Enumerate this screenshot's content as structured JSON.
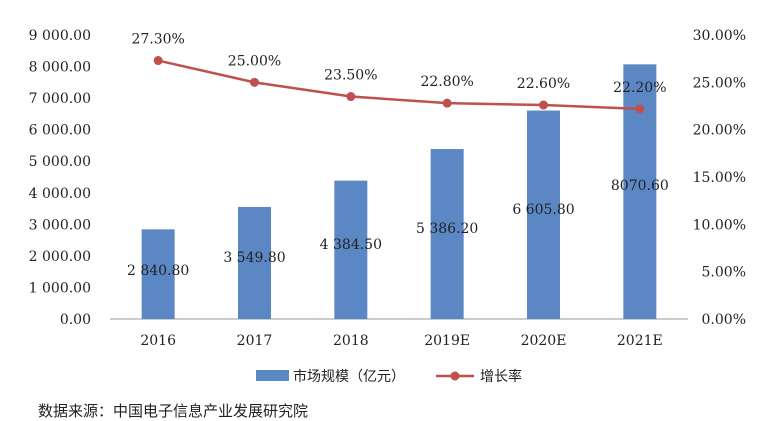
{
  "chart_data": {
    "type": "bar+line",
    "categories": [
      "2016",
      "2017",
      "2018",
      "2019E",
      "2020E",
      "2021E"
    ],
    "series": [
      {
        "name": "市场规模（亿元）",
        "type": "bar",
        "axis": "left",
        "values": [
          2840.8,
          3549.8,
          4384.5,
          5386.2,
          6605.8,
          8070.6
        ],
        "labels": [
          "2 840.80",
          "3 549.80",
          "4 384.50",
          "5 386.20",
          "6 605.80",
          "8070.60"
        ],
        "color": "#5b87c5"
      },
      {
        "name": "增长率",
        "type": "line",
        "axis": "right",
        "values": [
          27.3,
          25.0,
          23.5,
          22.8,
          22.6,
          22.2
        ],
        "labels": [
          "27.30%",
          "25.00%",
          "23.50%",
          "22.80%",
          "22.60%",
          "22.20%"
        ],
        "color": "#c0504d"
      }
    ],
    "y_left": {
      "ylim": [
        0,
        9000
      ],
      "ticks": [
        0,
        1000,
        2000,
        3000,
        4000,
        5000,
        6000,
        7000,
        8000,
        9000
      ],
      "tick_labels": [
        "0.00",
        "1 000.00",
        "2 000.00",
        "3 000.00",
        "4 000.00",
        "5 000.00",
        "6 000.00",
        "7 000.00",
        "8 000.00",
        "9 000.00"
      ]
    },
    "y_right": {
      "ylim": [
        0,
        30
      ],
      "ticks": [
        0,
        5,
        10,
        15,
        20,
        25,
        30
      ],
      "tick_labels": [
        "0.00%",
        "5.00%",
        "10.00%",
        "15.00%",
        "20.00%",
        "25.00%",
        "30.00%"
      ]
    },
    "grid": false,
    "legend_position": "bottom"
  },
  "source_note": "数据来源：中国电子信息产业发展研究院"
}
